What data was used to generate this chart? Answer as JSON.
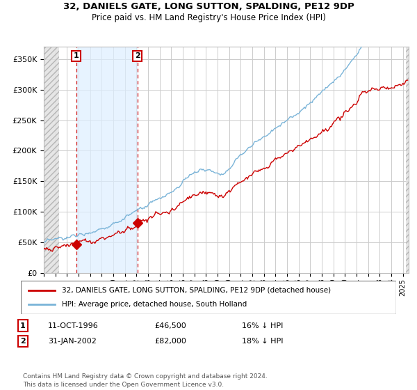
{
  "title1": "32, DANIELS GATE, LONG SUTTON, SPALDING, PE12 9DP",
  "title2": "Price paid vs. HM Land Registry's House Price Index (HPI)",
  "legend1": "32, DANIELS GATE, LONG SUTTON, SPALDING, PE12 9DP (detached house)",
  "legend2": "HPI: Average price, detached house, South Holland",
  "sale1_date": "11-OCT-1996",
  "sale1_price": 46500,
  "sale1_label": "16% ↓ HPI",
  "sale1_year": 1996.79,
  "sale2_date": "31-JAN-2002",
  "sale2_price": 82000,
  "sale2_label": "18% ↓ HPI",
  "sale2_year": 2002.08,
  "footer": "Contains HM Land Registry data © Crown copyright and database right 2024.\nThis data is licensed under the Open Government Licence v3.0.",
  "hpi_color": "#7ab4d8",
  "sale_color": "#cc0000",
  "ylim": [
    0,
    370000
  ],
  "xlim_start": 1994.0,
  "xlim_end": 2025.5
}
